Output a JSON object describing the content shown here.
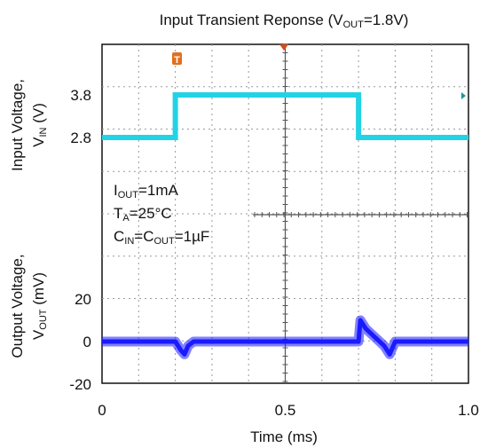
{
  "chart_data": {
    "type": "line",
    "title": {
      "prefix": "Input Transient Reponse (V",
      "sub": "OUT",
      "suffix": "=1.8V)"
    },
    "xlabel": "Time (ms)",
    "xlim": [
      0,
      1.0
    ],
    "x_ticks": [
      {
        "value": 0,
        "label": "0"
      },
      {
        "value": 0.5,
        "label": "0.5"
      },
      {
        "value": 1.0,
        "label": "1.0"
      }
    ],
    "top_panel": {
      "ylabel_line1": "Input Voltage,",
      "ylabel_line2": {
        "prefix": "V",
        "sub": "IN",
        "suffix": " (V)"
      },
      "y_ticks": [
        {
          "value": 3.8,
          "label": "3.8"
        },
        {
          "value": 2.8,
          "label": "2.8"
        }
      ],
      "series": [
        {
          "name": "VIN",
          "color": "#22d3e6",
          "x": [
            0,
            0.2,
            0.2,
            0.7,
            0.7,
            1.0
          ],
          "y": [
            2.8,
            2.8,
            3.8,
            3.8,
            2.8,
            2.8
          ]
        }
      ]
    },
    "bottom_panel": {
      "ylabel_line1": "Output Voltage,",
      "ylabel_line2": {
        "prefix": "V",
        "sub": "OUT",
        "suffix": " (mV)"
      },
      "ylim": [
        -20,
        20
      ],
      "y_ticks": [
        {
          "value": 20,
          "label": "20"
        },
        {
          "value": 0,
          "label": "0"
        },
        {
          "value": -20,
          "label": "-20"
        }
      ],
      "series": [
        {
          "name": "VOUT",
          "color": "#1a1aff",
          "x": [
            0,
            0.2,
            0.215,
            0.225,
            0.235,
            0.25,
            0.3,
            0.7,
            0.705,
            0.72,
            0.77,
            0.785,
            0.8,
            1.0
          ],
          "y": [
            0,
            0,
            -4,
            -6,
            -2,
            0,
            0,
            0,
            10,
            6,
            -2,
            -6,
            0,
            0
          ]
        }
      ]
    },
    "annotations": [
      {
        "prefix": "I",
        "sub": "OUT",
        "suffix": "=1mA"
      },
      {
        "prefix": "T",
        "sub": "A",
        "suffix": "=25°C"
      },
      {
        "prefix": "C",
        "sub": "IN",
        "suffix": "=C",
        "sub2": "OUT",
        "suffix2": "=1µF"
      }
    ],
    "markers": {
      "trigger": "T"
    },
    "grid": true
  }
}
